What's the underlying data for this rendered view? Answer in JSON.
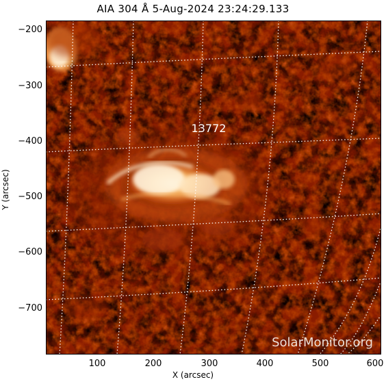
{
  "title": "AIA 304 Å  5-Aug-2024 23:24:29.133",
  "region_label": "13772",
  "watermark": "SolarMonitor.org",
  "axes": {
    "xlabel": "X (arcsec)",
    "ylabel": "Y (arcsec)",
    "xticks": [
      "100",
      "200",
      "300",
      "400",
      "500",
      "600"
    ],
    "yticks": [
      "−200",
      "−300",
      "−400",
      "−500",
      "−600",
      "−700"
    ]
  },
  "colors": {
    "background": "#000000",
    "colormap": [
      "#000000",
      "#3a0000",
      "#7a1500",
      "#b33a00",
      "#e0700f",
      "#f7b060",
      "#fff2d8"
    ],
    "grid": "#ffffff",
    "frame": "#ffffff"
  }
}
